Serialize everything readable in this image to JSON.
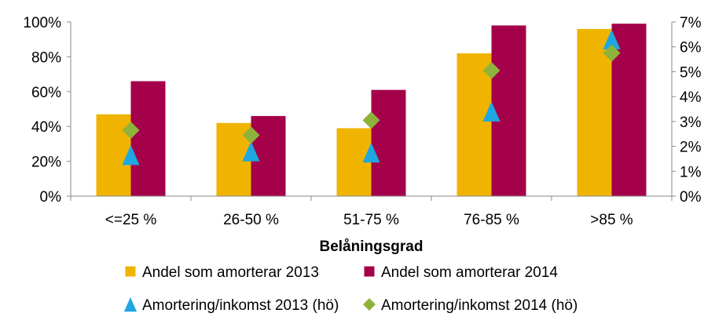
{
  "chart_data": {
    "type": "bar",
    "categories": [
      "<=25 %",
      "26-50 %",
      "51-75 %",
      "76-85 %",
      ">85 %"
    ],
    "xlabel": "Belåningsgrad",
    "y_left": {
      "ticks": [
        "0%",
        "20%",
        "40%",
        "60%",
        "80%",
        "100%"
      ],
      "ylim": [
        0,
        100
      ]
    },
    "y_right": {
      "ticks": [
        "0%",
        "1%",
        "2%",
        "3%",
        "4%",
        "5%",
        "6%",
        "7%"
      ],
      "ylim": [
        0,
        7
      ]
    },
    "series": [
      {
        "name": "Andel som amorterar 2013",
        "kind": "bar",
        "axis": "left",
        "color": "#F0B400",
        "marker": "square",
        "values": [
          47,
          42,
          39,
          82,
          96
        ]
      },
      {
        "name": "Andel som amorterar 2014",
        "kind": "bar",
        "axis": "left",
        "color": "#A5004A",
        "marker": "square",
        "values": [
          66,
          46,
          61,
          98,
          99
        ]
      },
      {
        "name": "Amortering/inkomst 2013 (hö)",
        "kind": "marker",
        "axis": "right",
        "color": "#1EA7E1",
        "marker": "triangle",
        "values": [
          1.65,
          1.8,
          1.75,
          3.4,
          6.3
        ]
      },
      {
        "name": "Amortering/inkomst 2014 (hö)",
        "kind": "marker",
        "axis": "right",
        "color": "#8DB33A",
        "marker": "diamond",
        "values": [
          2.65,
          2.45,
          3.05,
          5.05,
          5.75
        ]
      }
    ],
    "legend_position": "bottom",
    "grid": false
  }
}
